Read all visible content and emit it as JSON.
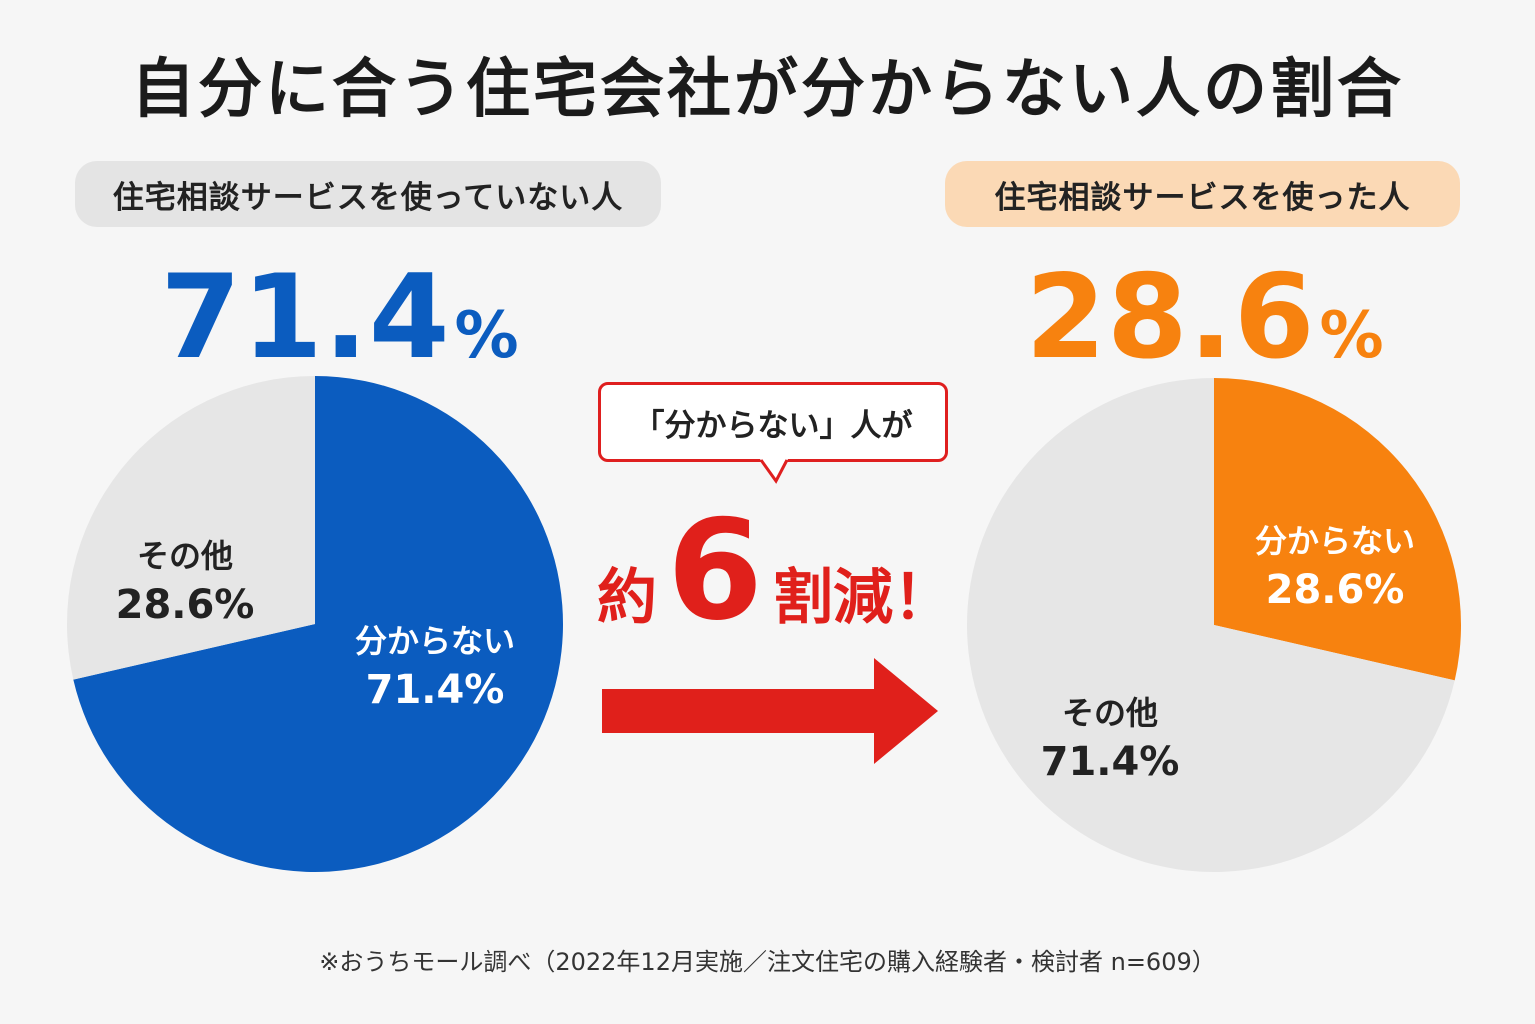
{
  "title": "自分に合う住宅会社が分からない人の割合",
  "colors": {
    "blue": "#0b5cbf",
    "orange": "#f7820f",
    "gray_slice": "#e6e6e6",
    "red": "#e0201b"
  },
  "left": {
    "group_label": "住宅相談サービスを使っていない人",
    "headline_value": "71.4",
    "headline_unit": "%",
    "highlight_label": "分からない",
    "highlight_value": "71.4%",
    "other_label": "その他",
    "other_value": "28.6%"
  },
  "right": {
    "group_label": "住宅相談サービスを使った人",
    "headline_value": "28.6",
    "headline_unit": "%",
    "highlight_label": "分からない",
    "highlight_value": "28.6%",
    "other_label": "その他",
    "other_value": "71.4%"
  },
  "callout": {
    "text": "「分からない」人が",
    "prefix": "約",
    "number": "6",
    "suffix": "割減",
    "exclaim": "！"
  },
  "footnote": "※おうちモール調べ（2022年12月実施／注文住宅の購入経験者・検討者 n=609）",
  "chart_data": [
    {
      "type": "pie",
      "title": "住宅相談サービスを使っていない人",
      "slices": [
        {
          "label": "分からない",
          "value": 71.4,
          "color": "#0b5cbf"
        },
        {
          "label": "その他",
          "value": 28.6,
          "color": "#e6e6e6"
        }
      ]
    },
    {
      "type": "pie",
      "title": "住宅相談サービスを使った人",
      "slices": [
        {
          "label": "分からない",
          "value": 28.6,
          "color": "#f7820f"
        },
        {
          "label": "その他",
          "value": 71.4,
          "color": "#e6e6e6"
        }
      ]
    }
  ]
}
